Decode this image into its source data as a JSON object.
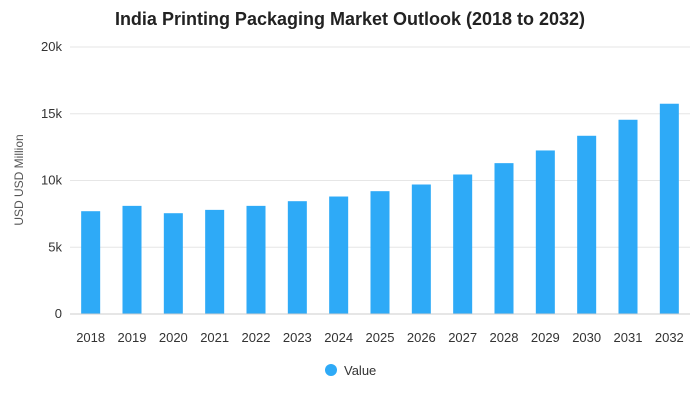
{
  "chart_data": {
    "type": "bar",
    "title": "India Printing Packaging Market Outlook (2018 to 2032)",
    "xlabel": "",
    "ylabel": "USD USD Million",
    "ylim": [
      0,
      20000
    ],
    "yticks": [
      0,
      5000,
      10000,
      15000,
      20000
    ],
    "ytick_labels": [
      "0",
      "5k",
      "10k",
      "15k",
      "20k"
    ],
    "grid": true,
    "legend_position": "bottom",
    "categories": [
      "2018",
      "2019",
      "2020",
      "2021",
      "2022",
      "2023",
      "2024",
      "2025",
      "2026",
      "2027",
      "2028",
      "2029",
      "2030",
      "2031",
      "2032"
    ],
    "series": [
      {
        "name": "Value",
        "color": "#2eaaf7",
        "values": [
          7700,
          8100,
          7550,
          7800,
          8100,
          8450,
          8800,
          9200,
          9700,
          10450,
          11300,
          12250,
          13350,
          14550,
          15750
        ]
      }
    ]
  }
}
